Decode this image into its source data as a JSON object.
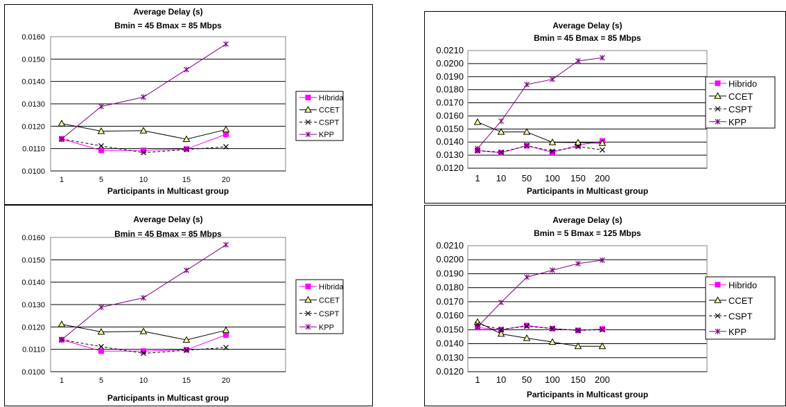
{
  "chart_data": [
    {
      "type": "line",
      "title": "Average Delay (s)",
      "subtitle": "Bmin = 45 Bmax = 85 Mbps",
      "xlabel": "Participants in Multicast group",
      "ylabel": "",
      "categories": [
        "1",
        "5",
        "10",
        "15",
        "20"
      ],
      "yticks": [
        "0.0100",
        "0.0110",
        "0.0120",
        "0.0130",
        "0.0140",
        "0.0150",
        "0.0160"
      ],
      "ylim": [
        0.01,
        0.016
      ],
      "grid": "horizontal",
      "legend_position": "right",
      "series": [
        {
          "name": "Híbrida",
          "color": "#FF00FF",
          "marker": "square",
          "dash": "solid",
          "values": [
            0.01143,
            0.01092,
            0.01092,
            0.01098,
            0.01164
          ]
        },
        {
          "name": "CCET",
          "color": "#000000",
          "marker": "triangle",
          "dash": "solid",
          "values": [
            0.01212,
            0.01178,
            0.0118,
            0.01142,
            0.01185
          ]
        },
        {
          "name": "CSPT",
          "color": "#000000",
          "marker": "x",
          "dash": "dashed",
          "values": [
            0.01143,
            0.01112,
            0.01082,
            0.01096,
            0.01108
          ]
        },
        {
          "name": "KPP",
          "color": "#800080",
          "marker": "asterisk",
          "dash": "solid",
          "values": [
            0.01143,
            0.01288,
            0.0133,
            0.01453,
            0.01567
          ]
        }
      ]
    },
    {
      "type": "line",
      "title": "Average Delay (s)",
      "subtitle": "Bmin = 45 Bmax = 85 Mbps",
      "xlabel": "Participants in Multicast group",
      "ylabel": "",
      "categories": [
        "1",
        "10",
        "50",
        "100",
        "150",
        "200"
      ],
      "yticks": [
        "0.0120",
        "0.0130",
        "0.0140",
        "0.0150",
        "0.0160",
        "0.0170",
        "0.0180",
        "0.0190",
        "0.0200",
        "0.0210"
      ],
      "ylim": [
        0.012,
        0.021
      ],
      "grid": "horizontal",
      "legend_position": "right",
      "series": [
        {
          "name": "Hibrido",
          "color": "#FF00FF",
          "marker": "square",
          "dash": "solid",
          "values": [
            0.01335,
            0.01318,
            0.01372,
            0.01322,
            0.01375,
            0.01408
          ]
        },
        {
          "name": "CCET",
          "color": "#000000",
          "marker": "triangle",
          "dash": "solid",
          "values": [
            0.01553,
            0.01477,
            0.01477,
            0.01398,
            0.01396,
            0.01392
          ]
        },
        {
          "name": "CSPT",
          "color": "#000000",
          "marker": "x",
          "dash": "dashed",
          "values": [
            0.01335,
            0.01322,
            0.01372,
            0.0133,
            0.01365,
            0.0134
          ]
        },
        {
          "name": "KPP",
          "color": "#800080",
          "marker": "asterisk",
          "dash": "solid",
          "values": [
            0.0135,
            0.0156,
            0.0184,
            0.0188,
            0.0202,
            0.02045
          ]
        }
      ]
    },
    {
      "type": "line",
      "title": "Average Delay (s)",
      "subtitle": "Bmin = 45 Bmax = 85 Mbps",
      "xlabel": "Participants in Multicast group",
      "ylabel": "",
      "categories": [
        "1",
        "5",
        "10",
        "15",
        "20"
      ],
      "yticks": [
        "0.0100",
        "0.0110",
        "0.0120",
        "0.0130",
        "0.0140",
        "0.0150",
        "0.0160"
      ],
      "ylim": [
        0.01,
        0.016
      ],
      "grid": "horizontal",
      "legend_position": "right",
      "series": [
        {
          "name": "Híbrida",
          "color": "#FF00FF",
          "marker": "square",
          "dash": "solid",
          "values": [
            0.01143,
            0.01092,
            0.01092,
            0.01098,
            0.01164
          ]
        },
        {
          "name": "CCET",
          "color": "#000000",
          "marker": "triangle",
          "dash": "solid",
          "values": [
            0.01212,
            0.01178,
            0.0118,
            0.01142,
            0.01185
          ]
        },
        {
          "name": "CSPT",
          "color": "#000000",
          "marker": "x",
          "dash": "dashed",
          "values": [
            0.01143,
            0.01112,
            0.01082,
            0.01096,
            0.01108
          ]
        },
        {
          "name": "KPP",
          "color": "#800080",
          "marker": "asterisk",
          "dash": "solid",
          "values": [
            0.01143,
            0.01288,
            0.0133,
            0.01453,
            0.01567
          ]
        }
      ]
    },
    {
      "type": "line",
      "title": "Average Delay (s)",
      "subtitle": "Bmin = 5 Bmax = 125 Mbps",
      "xlabel": "Participants in Multicast group",
      "ylabel": "",
      "categories": [
        "1",
        "10",
        "50",
        "100",
        "150",
        "200"
      ],
      "yticks": [
        "0.0120",
        "0.0130",
        "0.0140",
        "0.0150",
        "0.0160",
        "0.0170",
        "0.0180",
        "0.0190",
        "0.0200",
        "0.0210"
      ],
      "ylim": [
        0.012,
        0.021
      ],
      "grid": "horizontal",
      "legend_position": "right",
      "series": [
        {
          "name": "Hibrido",
          "color": "#FF00FF",
          "marker": "square",
          "dash": "solid",
          "values": [
            0.01515,
            0.015,
            0.0153,
            0.01508,
            0.01495,
            0.01505
          ]
        },
        {
          "name": "CCET",
          "color": "#000000",
          "marker": "triangle",
          "dash": "solid",
          "values": [
            0.01555,
            0.0147,
            0.0144,
            0.01412,
            0.01382,
            0.01382
          ]
        },
        {
          "name": "CSPT",
          "color": "#000000",
          "marker": "x",
          "dash": "dashed",
          "values": [
            0.0154,
            0.01502,
            0.01525,
            0.01508,
            0.01495,
            0.015
          ]
        },
        {
          "name": "KPP",
          "color": "#800080",
          "marker": "asterisk",
          "dash": "solid",
          "values": [
            0.0152,
            0.01695,
            0.01875,
            0.01925,
            0.01972,
            0.01997
          ]
        }
      ]
    }
  ]
}
